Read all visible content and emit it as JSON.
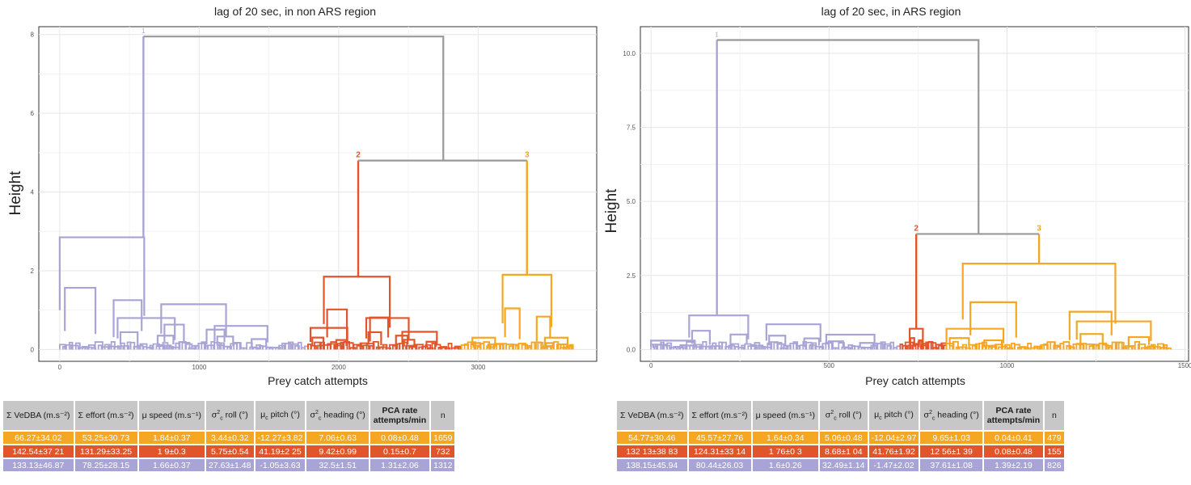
{
  "colors": {
    "cluster1": "#a8a4d6",
    "cluster2": "#e0562a",
    "cluster3": "#f5a623",
    "root": "#999999",
    "header_bg": "#c7c7c7"
  },
  "chart_data": [
    {
      "type": "dendrogram",
      "title": "lag of 20 sec, in non ARS region",
      "xlabel": "Prey catch attempts",
      "ylabel": "Height",
      "xlim": [
        -150,
        3850
      ],
      "ylim": [
        -0.3,
        8.2
      ],
      "x_ticks": [
        "0",
        "1000",
        "2000",
        "3000"
      ],
      "y_ticks": [
        "0",
        "2",
        "4",
        "6",
        "8"
      ],
      "grid": true,
      "cluster_labels": [
        "1",
        "2",
        "3"
      ],
      "clusters": [
        {
          "label": "1",
          "color_key": "cluster1",
          "x_range": [
            0,
            1780
          ],
          "merge_x": 600,
          "merge_height": 7.95,
          "sub": [
            {
              "x": 240,
              "h": 2.85
            },
            {
              "x": 620,
              "h": 0.8
            },
            {
              "x": 960,
              "h": 1.15
            },
            {
              "x": 1300,
              "h": 0.6
            }
          ]
        },
        {
          "label": "2",
          "color_key": "cluster2",
          "x_range": [
            1780,
            2880
          ],
          "merge_x": 2140,
          "merge_height": 4.8,
          "sub": [
            {
              "x": 2130,
              "h": 1.85
            },
            {
              "x": 1930,
              "h": 0.55
            },
            {
              "x": 2350,
              "h": 0.8
            },
            {
              "x": 2580,
              "h": 0.45
            }
          ]
        },
        {
          "label": "3",
          "color_key": "cluster3",
          "x_range": [
            2880,
            3680
          ],
          "merge_x": 3350,
          "merge_height": 4.8,
          "sub": [
            {
              "x": 3350,
              "h": 1.9
            },
            {
              "x": 3040,
              "h": 0.3
            },
            {
              "x": 3560,
              "h": 0.3
            }
          ]
        }
      ],
      "root": {
        "x1": 600,
        "x2": 2750,
        "height": 7.95,
        "inner_left": 2140,
        "inner_right": 3350,
        "inner_height": 4.8
      }
    },
    {
      "type": "dendrogram",
      "title": "lag of 20 sec, in ARS region",
      "xlabel": "Prey catch attempts",
      "ylabel": "Height",
      "xlim": [
        -30,
        1510
      ],
      "ylim": [
        -0.4,
        10.9
      ],
      "x_ticks": [
        "0",
        "500",
        "1000",
        "1500"
      ],
      "y_ticks": [
        "0.0",
        "2.5",
        "5.0",
        "7.5",
        "10.0"
      ],
      "grid": true,
      "cluster_labels": [
        "1",
        "2",
        "3"
      ],
      "clusters": [
        {
          "label": "1",
          "color_key": "cluster1",
          "x_range": [
            0,
            700
          ],
          "merge_x": 185,
          "merge_height": 10.45,
          "sub": [
            {
              "x": 190,
              "h": 1.15
            },
            {
              "x": 60,
              "h": 0.3
            },
            {
              "x": 400,
              "h": 0.85
            },
            {
              "x": 560,
              "h": 0.5
            }
          ]
        },
        {
          "label": "2",
          "color_key": "cluster2",
          "x_range": [
            700,
            830
          ],
          "merge_x": 745,
          "merge_height": 3.9,
          "sub": [
            {
              "x": 745,
              "h": 0.7
            }
          ]
        },
        {
          "label": "3",
          "color_key": "cluster3",
          "x_range": [
            830,
            1460
          ],
          "merge_x": 1090,
          "merge_height": 3.9,
          "sub": [
            {
              "x": 1090,
              "h": 2.9
            },
            {
              "x": 900,
              "h": 0.7
            },
            {
              "x": 1300,
              "h": 0.95
            }
          ]
        }
      ],
      "root": {
        "x1": 185,
        "x2": 920,
        "height": 10.45,
        "inner_left": 745,
        "inner_right": 1090,
        "inner_height": 3.9
      }
    }
  ],
  "tables": [
    {
      "headers": [
        "Σ VeDBA (m.s⁻²)",
        "Σ effort (m.s⁻²)",
        "μ speed (m.s⁻¹)",
        "σ²c roll (°)",
        "μc pitch (°)",
        "σ²c heading (°)",
        "PCA rate attempts/min",
        "n"
      ],
      "rows": [
        {
          "color_key": "cluster3",
          "cells": [
            "66.27±34.02",
            "53.25±30.73",
            "1.84±0.37",
            "3.44±0.32",
            "-12.27±3.82",
            "7.06±0.63",
            "0.08±0.48",
            "1659"
          ]
        },
        {
          "color_key": "cluster2",
          "cells": [
            "142.54±37 21",
            "131.29±33.25",
            "1 9±0.3",
            "5.75±0.54",
            "41.19±2 25",
            "9.42±0.99",
            "0.15±0.7",
            "732"
          ]
        },
        {
          "color_key": "cluster1",
          "cells": [
            "133.13±46.87",
            "78.25±28.15",
            "1.66±0.37",
            "27.63±1.48",
            "-1.05±3.63",
            "32.5±1.51",
            "1.31±2.06",
            "1312"
          ]
        }
      ]
    },
    {
      "headers": [
        "Σ VeDBA (m.s⁻²)",
        "Σ effort (m.s⁻²)",
        "μ speed (m.s⁻¹)",
        "σ²c roll (°)",
        "μc pitch (°)",
        "σ²c heading (°)",
        "PCA rate attempts/min",
        "n"
      ],
      "rows": [
        {
          "color_key": "cluster3",
          "cells": [
            "54.77±30.46",
            "45.57±27.76",
            "1.64±0.34",
            "5.06±0.48",
            "-12.04±2.97",
            "9.65±1.03",
            "0.04±0.41",
            "479"
          ]
        },
        {
          "color_key": "cluster2",
          "cells": [
            "132 13±38 83",
            "124.31±33 14",
            "1 76±0 3",
            "8.68±1 04",
            "41.76±1.92",
            "12 56±1 39",
            "0.08±0.48",
            "155"
          ]
        },
        {
          "color_key": "cluster1",
          "cells": [
            "138.15±45.94",
            "80.44±26.03",
            "1.6±0.26",
            "32.49±1.14",
            "-1.47±2.02",
            "37.61±1.08",
            "1.39±2.19",
            "826"
          ]
        }
      ]
    }
  ]
}
